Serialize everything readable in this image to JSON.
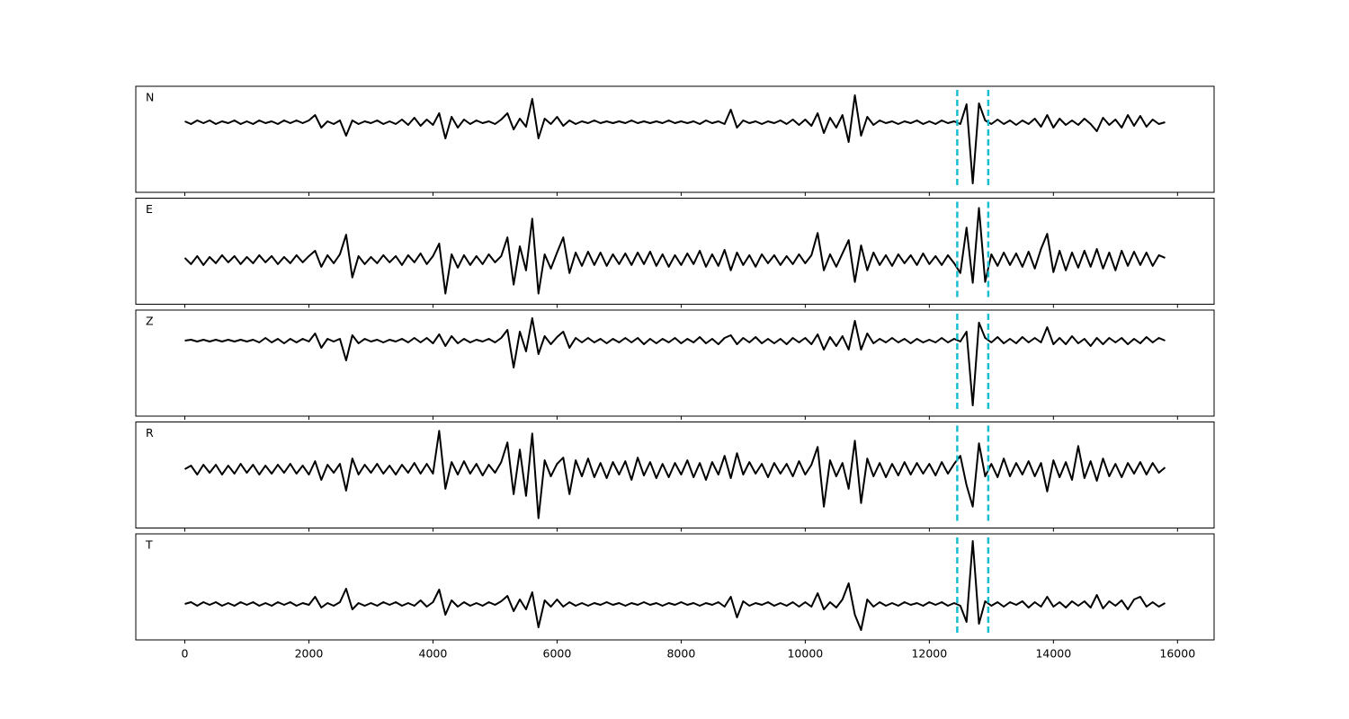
{
  "chart_data": {
    "type": "line",
    "color": "#000000",
    "xlim": [
      -790,
      16590
    ],
    "xticks": [
      0,
      2000,
      4000,
      6000,
      8000,
      10000,
      12000,
      14000,
      16000
    ],
    "vlines": [
      12450,
      12950
    ],
    "vline_color": "#17becf",
    "x": [
      0,
      100,
      200,
      300,
      400,
      500,
      600,
      700,
      800,
      900,
      1000,
      1100,
      1200,
      1300,
      1400,
      1500,
      1600,
      1700,
      1800,
      1900,
      2000,
      2100,
      2200,
      2300,
      2400,
      2500,
      2600,
      2700,
      2800,
      2900,
      3000,
      3100,
      3200,
      3300,
      3400,
      3500,
      3600,
      3700,
      3800,
      3900,
      4000,
      4100,
      4200,
      4300,
      4400,
      4500,
      4600,
      4700,
      4800,
      4900,
      5000,
      5100,
      5200,
      5300,
      5400,
      5500,
      5600,
      5700,
      5800,
      5900,
      6000,
      6100,
      6200,
      6300,
      6400,
      6500,
      6600,
      6700,
      6800,
      6900,
      7000,
      7100,
      7200,
      7300,
      7400,
      7500,
      7600,
      7700,
      7800,
      7900,
      8000,
      8100,
      8200,
      8300,
      8400,
      8500,
      8600,
      8700,
      8800,
      8900,
      9000,
      9100,
      9200,
      9300,
      9400,
      9500,
      9600,
      9700,
      9800,
      9900,
      10000,
      10100,
      10200,
      10300,
      10400,
      10500,
      10600,
      10700,
      10800,
      10900,
      11000,
      11100,
      11200,
      11300,
      11400,
      11500,
      11600,
      11700,
      11800,
      11900,
      12000,
      12100,
      12200,
      12300,
      12400,
      12500,
      12600,
      12700,
      12800,
      12900,
      13000,
      13100,
      13200,
      13300,
      13400,
      13500,
      13600,
      13700,
      13800,
      13900,
      14000,
      14100,
      14200,
      14300,
      14400,
      14500,
      14600,
      14700,
      14800,
      14900,
      15000,
      15100,
      15200,
      15300,
      15400,
      15500,
      15600,
      15700,
      15800
    ],
    "panels": [
      {
        "label": "N",
        "ylim": [
          -7.8,
          4.0
        ],
        "values": [
          0.1,
          -0.2,
          0.2,
          -0.1,
          0.2,
          -0.2,
          0.1,
          -0.1,
          0.2,
          -0.2,
          0.1,
          -0.2,
          0.2,
          -0.1,
          0.1,
          -0.2,
          0.2,
          -0.1,
          0.2,
          -0.1,
          0.2,
          0.8,
          -0.6,
          0.1,
          -0.2,
          0.2,
          -1.5,
          0.2,
          -0.2,
          0.1,
          -0.1,
          0.2,
          -0.2,
          0.1,
          -0.2,
          0.3,
          -0.3,
          0.5,
          -0.4,
          0.3,
          -0.3,
          1.0,
          -1.8,
          0.6,
          -0.6,
          0.3,
          -0.2,
          0.2,
          -0.1,
          0.1,
          -0.2,
          0.3,
          1.0,
          -0.8,
          0.4,
          -0.5,
          2.6,
          -1.8,
          0.4,
          -0.2,
          0.6,
          -0.4,
          0.2,
          -0.2,
          0.1,
          -0.1,
          0.2,
          -0.1,
          0.1,
          -0.1,
          0.1,
          -0.1,
          0.2,
          -0.1,
          0.1,
          -0.1,
          0.1,
          -0.1,
          0.2,
          -0.1,
          0.1,
          -0.1,
          0.1,
          -0.2,
          0.2,
          -0.1,
          0.1,
          -0.2,
          1.4,
          -0.6,
          0.2,
          -0.1,
          0.1,
          -0.2,
          0.1,
          -0.1,
          0.2,
          -0.2,
          0.3,
          -0.3,
          0.3,
          -0.4,
          1.0,
          -1.2,
          0.5,
          -0.6,
          0.8,
          -2.2,
          3.0,
          -1.5,
          0.6,
          -0.3,
          0.2,
          -0.1,
          0.1,
          -0.2,
          0.1,
          -0.1,
          0.2,
          -0.2,
          0.1,
          -0.2,
          0.2,
          -0.1,
          0.1,
          -0.2,
          2.0,
          -6.8,
          2.1,
          0.2,
          -0.2,
          0.3,
          -0.2,
          0.2,
          -0.3,
          0.2,
          -0.2,
          0.4,
          -0.5,
          0.8,
          -0.6,
          0.4,
          -0.3,
          0.2,
          -0.3,
          0.4,
          -0.2,
          -1.0,
          0.5,
          -0.3,
          0.3,
          -0.6,
          0.8,
          -0.4,
          0.7,
          -0.5,
          0.3,
          -0.2,
          0.0
        ]
      },
      {
        "label": "E",
        "ylim": [
          -5.0,
          6.9
        ],
        "values": [
          0.2,
          -0.5,
          0.4,
          -0.6,
          0.3,
          -0.4,
          0.5,
          -0.3,
          0.4,
          -0.5,
          0.3,
          -0.4,
          0.5,
          -0.3,
          0.4,
          -0.5,
          0.3,
          -0.4,
          0.5,
          -0.3,
          0.4,
          1.0,
          -0.8,
          0.5,
          -0.4,
          0.6,
          2.8,
          -2.0,
          0.4,
          -0.5,
          0.3,
          -0.4,
          0.5,
          -0.3,
          0.4,
          -0.6,
          0.5,
          -0.3,
          0.7,
          -0.5,
          0.4,
          1.8,
          -3.8,
          0.6,
          -0.9,
          0.5,
          -0.6,
          0.4,
          -0.5,
          0.6,
          -0.3,
          0.4,
          2.5,
          -2.8,
          1.5,
          -1.2,
          4.6,
          -3.8,
          0.6,
          -1.0,
          0.8,
          2.5,
          -1.5,
          0.8,
          -0.7,
          0.9,
          -0.6,
          0.8,
          -0.7,
          0.6,
          -0.5,
          0.7,
          -0.6,
          0.8,
          -0.5,
          0.9,
          -0.7,
          0.6,
          -0.8,
          0.5,
          -0.6,
          0.7,
          -0.5,
          1.0,
          -0.8,
          0.6,
          -0.7,
          1.1,
          -1.2,
          0.8,
          -0.6,
          0.5,
          -0.8,
          0.6,
          -0.4,
          0.5,
          -0.6,
          0.4,
          -0.5,
          0.6,
          -0.4,
          0.5,
          3.0,
          -1.2,
          0.6,
          -0.8,
          0.7,
          2.2,
          -2.5,
          1.6,
          -1.2,
          0.8,
          -0.6,
          0.5,
          -0.7,
          0.6,
          -0.4,
          0.5,
          -0.6,
          0.7,
          -0.5,
          0.4,
          -0.6,
          0.5,
          -0.4,
          -1.5,
          3.6,
          -2.6,
          5.8,
          -2.5,
          0.6,
          -0.7,
          0.8,
          -0.6,
          0.7,
          -0.8,
          0.9,
          -1.0,
          1.2,
          2.9,
          -1.4,
          1.0,
          -1.2,
          0.8,
          -0.9,
          1.0,
          -0.8,
          1.2,
          -1.0,
          0.8,
          -1.2,
          1.0,
          -0.7,
          0.9,
          -0.6,
          0.8,
          -0.7,
          0.5,
          0.2
        ]
      },
      {
        "label": "Z",
        "ylim": [
          -8.4,
          3.4
        ],
        "values": [
          0.0,
          0.1,
          -0.1,
          0.1,
          -0.1,
          0.1,
          -0.1,
          0.1,
          -0.1,
          0.1,
          -0.1,
          0.1,
          -0.2,
          0.3,
          -0.2,
          0.2,
          -0.3,
          0.2,
          -0.2,
          0.2,
          -0.1,
          0.8,
          -0.8,
          0.2,
          -0.1,
          0.2,
          -2.2,
          0.6,
          -0.3,
          0.2,
          -0.1,
          0.1,
          -0.2,
          0.1,
          -0.1,
          0.2,
          -0.2,
          0.3,
          -0.2,
          0.3,
          -0.3,
          0.7,
          -0.6,
          0.5,
          -0.3,
          0.2,
          -0.2,
          0.1,
          -0.1,
          0.2,
          -0.2,
          0.3,
          1.2,
          -3.0,
          1.0,
          -1.2,
          2.5,
          -1.5,
          0.5,
          -0.4,
          0.4,
          1.0,
          -0.8,
          0.3,
          -0.2,
          0.3,
          -0.2,
          0.2,
          -0.3,
          0.2,
          -0.2,
          0.3,
          -0.2,
          0.3,
          -0.4,
          0.2,
          -0.3,
          0.2,
          -0.2,
          0.3,
          -0.3,
          0.2,
          -0.2,
          0.4,
          -0.3,
          0.2,
          -0.4,
          0.3,
          0.6,
          -0.4,
          0.3,
          -0.2,
          0.4,
          -0.3,
          0.2,
          -0.3,
          0.2,
          -0.4,
          0.3,
          -0.2,
          0.3,
          -0.4,
          0.7,
          -1.0,
          0.4,
          -0.6,
          0.5,
          -1.0,
          2.2,
          -1.0,
          0.8,
          -0.3,
          0.2,
          -0.2,
          0.3,
          -0.2,
          0.2,
          -0.3,
          0.2,
          -0.2,
          0.1,
          -0.2,
          0.3,
          -0.2,
          0.2,
          -0.1,
          1.0,
          -7.2,
          2.0,
          0.3,
          -0.2,
          0.4,
          -0.3,
          0.2,
          -0.3,
          0.4,
          -0.2,
          0.3,
          -0.2,
          1.5,
          -0.4,
          0.3,
          -0.4,
          0.5,
          -0.3,
          0.2,
          -0.6,
          0.3,
          -0.4,
          0.3,
          -0.2,
          0.3,
          -0.4,
          0.2,
          -0.3,
          0.4,
          -0.2,
          0.3,
          0.0
        ]
      },
      {
        "label": "R",
        "ylim": [
          -6.6,
          5.3
        ],
        "values": [
          0.0,
          0.4,
          -0.6,
          0.5,
          -0.4,
          0.5,
          -0.6,
          0.4,
          -0.5,
          0.6,
          -0.4,
          0.5,
          -0.6,
          0.4,
          -0.5,
          0.5,
          -0.4,
          0.6,
          -0.5,
          0.4,
          -0.6,
          0.9,
          -1.2,
          0.5,
          -0.4,
          0.6,
          -2.4,
          1.2,
          -0.6,
          0.5,
          -0.4,
          0.6,
          -0.5,
          0.4,
          -0.6,
          0.5,
          -0.4,
          0.7,
          -0.5,
          0.6,
          -0.5,
          4.3,
          -2.2,
          0.8,
          -0.6,
          0.9,
          -0.5,
          0.6,
          -0.7,
          0.5,
          -0.4,
          0.8,
          3.0,
          -2.8,
          2.2,
          -3.0,
          4.0,
          -5.5,
          1.0,
          -0.8,
          0.6,
          1.3,
          -2.8,
          1.0,
          -0.8,
          1.2,
          -0.9,
          0.7,
          -1.0,
          0.8,
          -0.6,
          0.9,
          -1.2,
          1.3,
          -0.7,
          0.8,
          -1.0,
          0.6,
          -0.9,
          0.7,
          -0.6,
          1.0,
          -0.9,
          0.7,
          -1.2,
          0.8,
          -0.6,
          1.5,
          -1.0,
          1.8,
          -0.6,
          0.8,
          -0.5,
          0.6,
          -0.9,
          0.7,
          -0.5,
          0.6,
          -0.8,
          0.9,
          -0.6,
          0.5,
          2.5,
          -4.2,
          1.0,
          -0.8,
          0.7,
          -2.2,
          3.2,
          -3.8,
          1.2,
          -0.8,
          0.7,
          -0.9,
          0.6,
          -0.7,
          0.8,
          -0.6,
          0.7,
          -0.5,
          0.6,
          -0.7,
          0.8,
          -0.5,
          0.6,
          1.5,
          -1.8,
          -4.2,
          2.9,
          -0.8,
          0.6,
          -0.9,
          1.2,
          -0.8,
          0.7,
          -0.6,
          0.9,
          -0.8,
          0.7,
          -2.5,
          1.0,
          -0.9,
          0.8,
          -1.2,
          2.6,
          -1.0,
          0.9,
          -1.3,
          1.2,
          -0.8,
          0.6,
          -0.9,
          0.7,
          -0.5,
          0.8,
          -0.6,
          0.7,
          -0.4,
          0.2
        ]
      },
      {
        "label": "T",
        "ylim": [
          -4.0,
          7.8
        ],
        "values": [
          0.0,
          0.2,
          -0.2,
          0.2,
          -0.1,
          0.2,
          -0.2,
          0.1,
          -0.2,
          0.2,
          -0.1,
          0.2,
          -0.2,
          0.1,
          -0.2,
          0.2,
          -0.1,
          0.2,
          -0.2,
          0.1,
          -0.1,
          0.8,
          -0.4,
          0.1,
          -0.2,
          0.2,
          1.7,
          -0.6,
          0.1,
          -0.2,
          0.1,
          -0.2,
          0.2,
          -0.1,
          0.2,
          -0.2,
          0.1,
          -0.2,
          0.4,
          -0.3,
          0.2,
          1.6,
          -1.2,
          0.4,
          -0.3,
          0.2,
          -0.2,
          0.1,
          -0.2,
          0.2,
          -0.1,
          0.3,
          0.9,
          -0.8,
          0.5,
          -0.6,
          1.3,
          -2.6,
          0.4,
          -0.3,
          0.5,
          -0.3,
          0.2,
          -0.2,
          0.1,
          -0.2,
          0.1,
          -0.1,
          0.2,
          -0.1,
          0.1,
          -0.2,
          0.1,
          -0.1,
          0.2,
          -0.1,
          0.1,
          -0.2,
          0.1,
          -0.1,
          0.2,
          -0.1,
          0.1,
          -0.2,
          0.1,
          -0.1,
          0.2,
          -0.3,
          0.8,
          -1.5,
          0.3,
          -0.2,
          0.1,
          -0.1,
          0.2,
          -0.2,
          0.1,
          -0.2,
          0.2,
          -0.3,
          0.2,
          -0.3,
          1.2,
          -0.6,
          0.2,
          -0.4,
          0.5,
          2.3,
          -1.2,
          -2.9,
          0.5,
          -0.3,
          0.2,
          -0.2,
          0.1,
          -0.2,
          0.2,
          -0.1,
          0.1,
          -0.2,
          0.2,
          -0.1,
          0.2,
          -0.2,
          0.1,
          -0.2,
          -2.0,
          7.0,
          -2.2,
          0.3,
          -0.2,
          0.2,
          -0.3,
          0.2,
          -0.1,
          0.3,
          -0.4,
          0.2,
          -0.3,
          0.8,
          -0.3,
          0.2,
          -0.4,
          0.3,
          -0.2,
          0.3,
          -0.4,
          1.0,
          -0.5,
          0.3,
          -0.2,
          0.4,
          -0.6,
          0.5,
          0.8,
          -0.3,
          0.2,
          -0.3,
          0.1
        ]
      }
    ]
  }
}
